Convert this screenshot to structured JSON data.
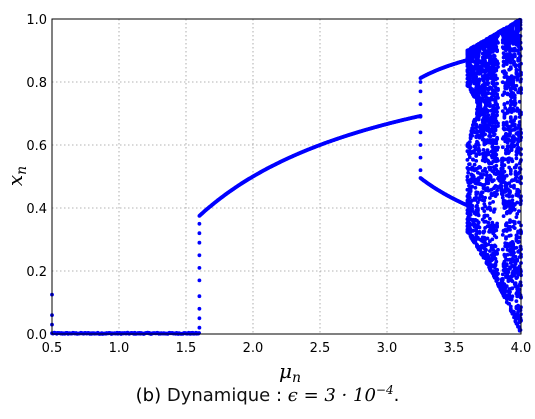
{
  "chart_data": {
    "type": "scatter",
    "xlabel": "μ",
    "xlabel_sub": "n",
    "ylabel": "x",
    "ylabel_sub": "n",
    "xlim": [
      0.5,
      4.0
    ],
    "ylim": [
      0.0,
      1.0
    ],
    "x_ticks": [
      "0.5",
      "1.0",
      "1.5",
      "2.0",
      "2.5",
      "3.0",
      "3.5",
      "4.0"
    ],
    "y_ticks": [
      "0.0",
      "0.2",
      "0.4",
      "0.6",
      "0.8",
      "1.0"
    ],
    "grid": true,
    "point_color": "#0000ff",
    "series": [
      {
        "description_points": "bifurcation diagram of the perturbed logistic map",
        "x_start": 0.5,
        "x_end": 4.0,
        "fixed_point_zero_until": 1.6,
        "period1_from": 1.6,
        "period1_to": 3.25,
        "period2_from": 3.25,
        "period2_to": 3.6,
        "chaos_from": 3.6
      }
    ]
  },
  "caption": {
    "prefix": "(b) ",
    "bold": "Dynamique",
    "separator": " : ",
    "math": "ϵ = 3 · 10",
    "exponent": "−4",
    "suffix": "."
  }
}
